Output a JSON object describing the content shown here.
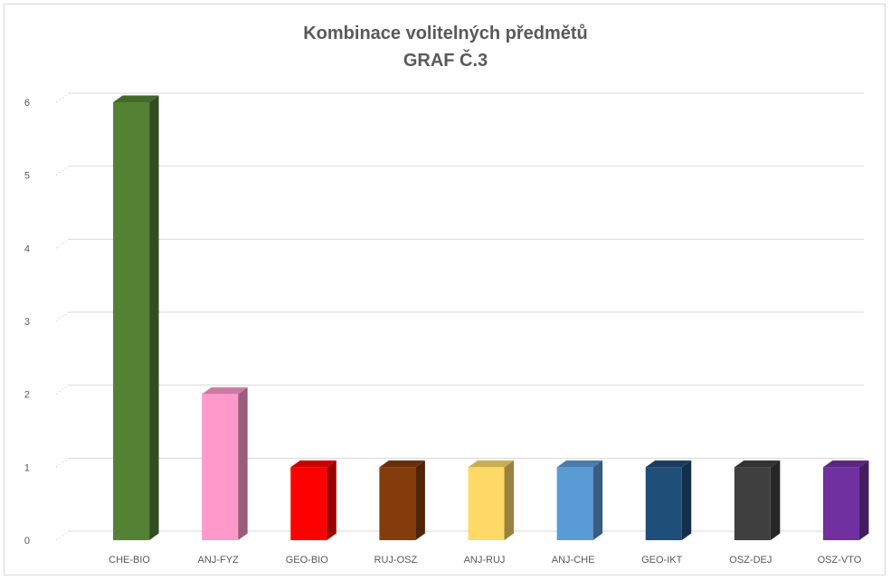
{
  "chart_data": {
    "type": "bar",
    "title": "Kombinace volitelných předmětů",
    "subtitle": "GRAF Č.3",
    "categories": [
      "CHE-BIO",
      "ANJ-FYZ",
      "GEO-BIO",
      "RUJ-OSZ",
      "ANJ-RUJ",
      "ANJ-CHE",
      "GEO-IKT",
      "OSZ-DEJ",
      "OSZ-VTO"
    ],
    "values": [
      6,
      2,
      1,
      1,
      1,
      1,
      1,
      1,
      1
    ],
    "colors": [
      "#548235",
      "#ff99cc",
      "#ff0000",
      "#843c0c",
      "#ffd966",
      "#5b9bd5",
      "#1f4e79",
      "#404040",
      "#7030a0"
    ],
    "ylim": [
      0,
      6
    ],
    "yticks": [
      "0",
      "1",
      "2",
      "3",
      "4",
      "5",
      "6"
    ],
    "grid": true,
    "legend": "none"
  }
}
